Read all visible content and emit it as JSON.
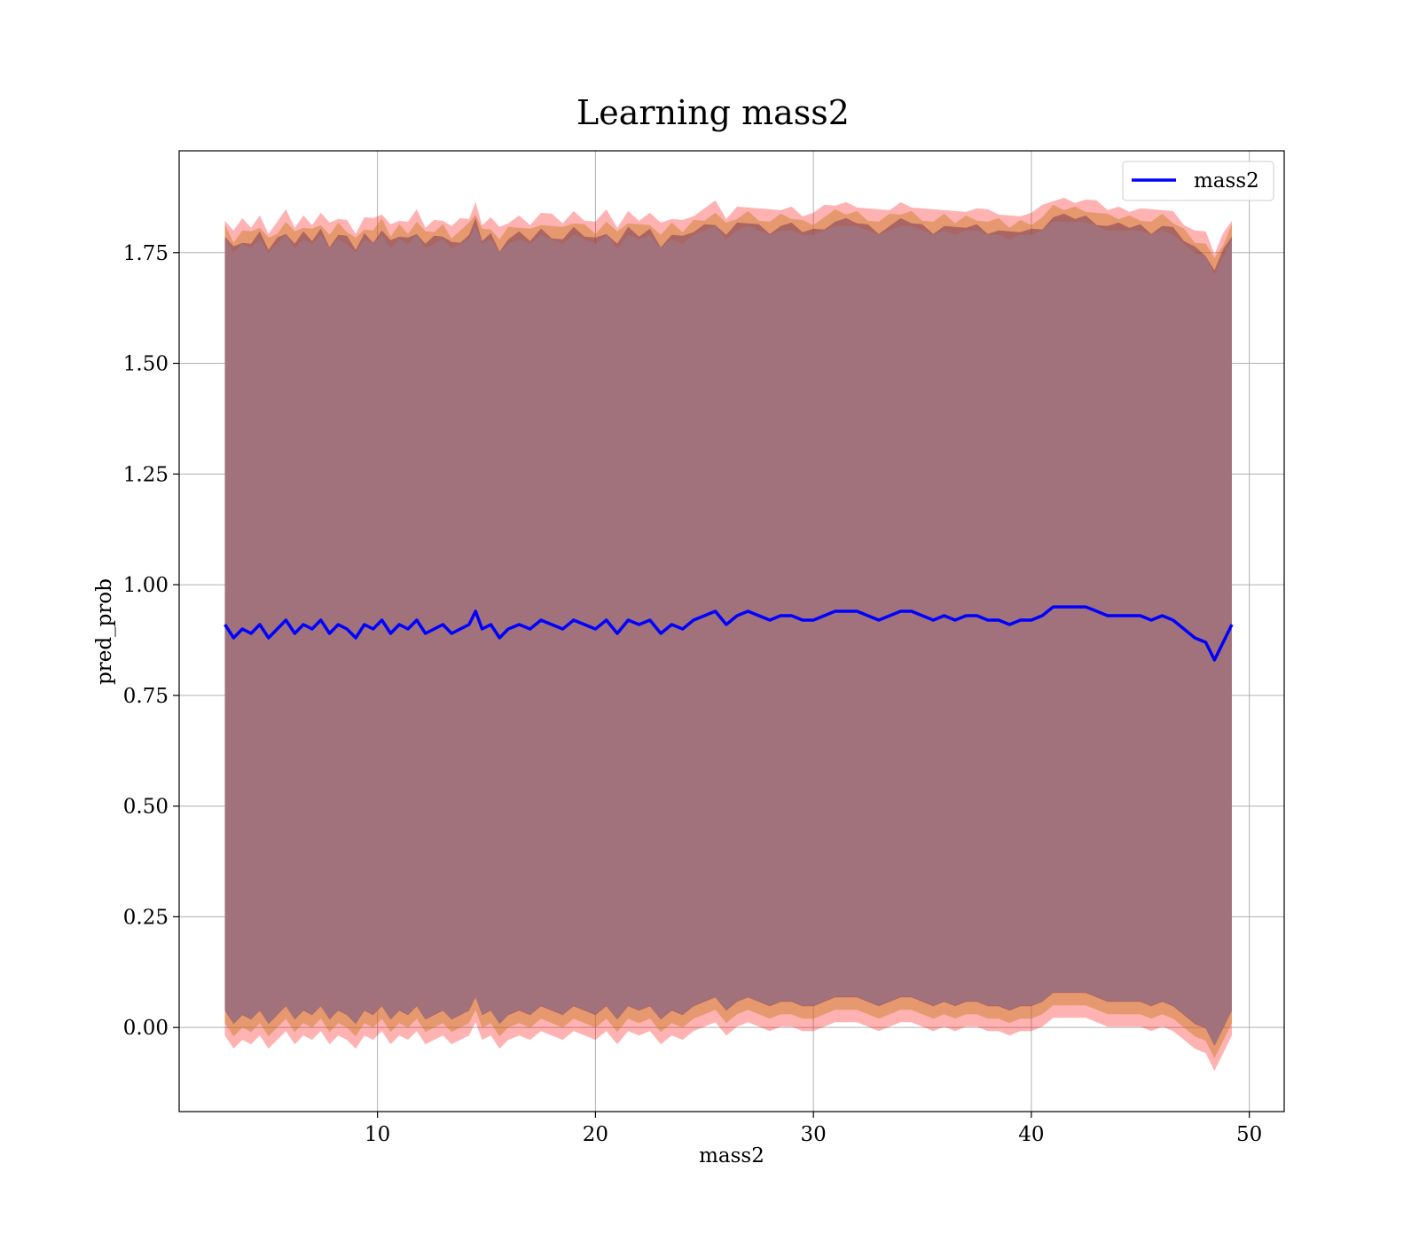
{
  "chart_data": {
    "type": "line",
    "title": "Learning mass2",
    "xlabel": "mass2",
    "ylabel": "pred_prob",
    "xlim": [
      0.9,
      51.6
    ],
    "ylim": [
      -0.19,
      1.98
    ],
    "xticks": [
      {
        "value": 10,
        "label": "10"
      },
      {
        "value": 20,
        "label": "20"
      },
      {
        "value": 30,
        "label": "30"
      },
      {
        "value": 40,
        "label": "40"
      },
      {
        "value": 50,
        "label": "50"
      }
    ],
    "yticks": [
      {
        "value": 0.0,
        "label": "0.00"
      },
      {
        "value": 0.25,
        "label": "0.25"
      },
      {
        "value": 0.5,
        "label": "0.50"
      },
      {
        "value": 0.75,
        "label": "0.75"
      },
      {
        "value": 1.0,
        "label": "1.00"
      },
      {
        "value": 1.25,
        "label": "1.25"
      },
      {
        "value": 1.5,
        "label": "1.50"
      },
      {
        "value": 1.75,
        "label": "1.75"
      }
    ],
    "grid": true,
    "legend": {
      "position": "top-right",
      "entries": [
        "mass2"
      ]
    },
    "series": [
      {
        "name": "mass2",
        "color": "#0000ff",
        "x": [
          3.0,
          3.4,
          3.8,
          4.2,
          4.6,
          5.0,
          5.4,
          5.8,
          6.2,
          6.6,
          7.0,
          7.4,
          7.8,
          8.2,
          8.6,
          9.0,
          9.4,
          9.8,
          10.2,
          10.6,
          11.0,
          11.4,
          11.8,
          12.2,
          12.6,
          13.0,
          13.4,
          13.8,
          14.2,
          14.5,
          14.8,
          15.2,
          15.6,
          16.0,
          16.5,
          17.0,
          17.5,
          18.0,
          18.5,
          19.0,
          19.5,
          20.0,
          20.5,
          21.0,
          21.5,
          22.0,
          22.5,
          23.0,
          23.5,
          24.0,
          24.5,
          25.0,
          25.5,
          26.0,
          26.5,
          27.0,
          27.5,
          28.0,
          28.5,
          29.0,
          29.5,
          30.0,
          30.5,
          31.0,
          31.5,
          32.0,
          32.5,
          33.0,
          33.5,
          34.0,
          34.5,
          35.0,
          35.5,
          36.0,
          36.5,
          37.0,
          37.5,
          38.0,
          38.5,
          39.0,
          39.5,
          40.0,
          40.5,
          41.0,
          41.5,
          42.0,
          42.5,
          43.0,
          43.5,
          44.0,
          44.5,
          45.0,
          45.5,
          46.0,
          46.5,
          47.0,
          47.5,
          48.0,
          48.4,
          48.8,
          49.2
        ],
        "y": [
          0.91,
          0.88,
          0.9,
          0.89,
          0.91,
          0.88,
          0.9,
          0.92,
          0.89,
          0.91,
          0.9,
          0.92,
          0.89,
          0.91,
          0.9,
          0.88,
          0.91,
          0.9,
          0.92,
          0.89,
          0.91,
          0.9,
          0.92,
          0.89,
          0.9,
          0.91,
          0.89,
          0.9,
          0.91,
          0.94,
          0.9,
          0.91,
          0.88,
          0.9,
          0.91,
          0.9,
          0.92,
          0.91,
          0.9,
          0.92,
          0.91,
          0.9,
          0.92,
          0.89,
          0.92,
          0.91,
          0.92,
          0.89,
          0.91,
          0.9,
          0.92,
          0.93,
          0.94,
          0.91,
          0.93,
          0.94,
          0.93,
          0.92,
          0.93,
          0.93,
          0.92,
          0.92,
          0.93,
          0.94,
          0.94,
          0.94,
          0.93,
          0.92,
          0.93,
          0.94,
          0.94,
          0.93,
          0.92,
          0.93,
          0.92,
          0.93,
          0.93,
          0.92,
          0.92,
          0.91,
          0.92,
          0.92,
          0.93,
          0.95,
          0.95,
          0.95,
          0.95,
          0.94,
          0.93,
          0.93,
          0.93,
          0.93,
          0.92,
          0.93,
          0.92,
          0.9,
          0.88,
          0.87,
          0.83,
          0.87,
          0.91
        ]
      }
    ]
  }
}
